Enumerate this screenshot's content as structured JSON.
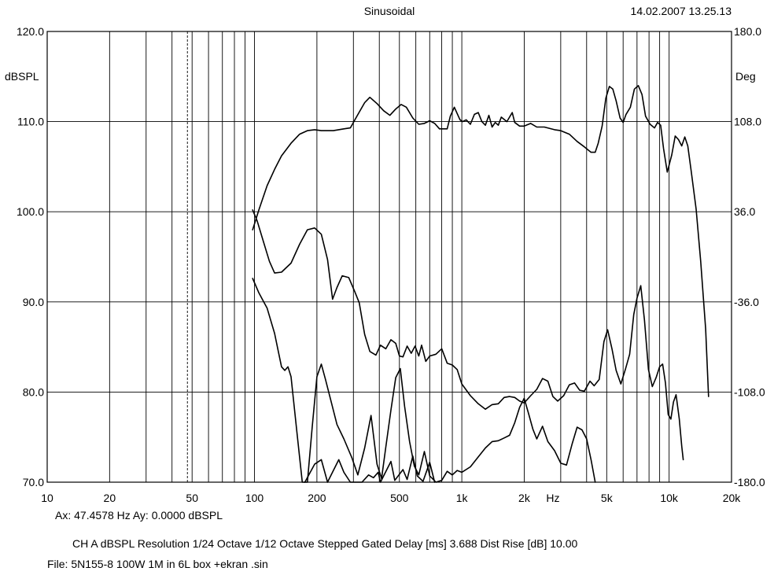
{
  "header": {
    "title": "Sinusoidal",
    "timestamp": "14.02.2007 13.25.13"
  },
  "chart_data": {
    "type": "line",
    "title": "Sinusoidal",
    "xscale": "log",
    "xlim": [
      10,
      20000
    ],
    "xunit": "Hz",
    "ylim": [
      70,
      120
    ],
    "ylabel": "dBSPL",
    "y2lim": [
      -180,
      180
    ],
    "y2label": "Deg",
    "grid": true,
    "marker_freq": 47.4578,
    "x_ticks": [
      {
        "v": 10,
        "label": "10"
      },
      {
        "v": 20,
        "label": "20"
      },
      {
        "v": 50,
        "label": "50"
      },
      {
        "v": 100,
        "label": "100"
      },
      {
        "v": 200,
        "label": "200"
      },
      {
        "v": 500,
        "label": "500"
      },
      {
        "v": 1000,
        "label": "1k"
      },
      {
        "v": 2000,
        "label": "2k"
      },
      {
        "v": 5000,
        "label": "5k"
      },
      {
        "v": 10000,
        "label": "10k"
      },
      {
        "v": 20000,
        "label": "20k"
      }
    ],
    "hz_label": {
      "v": 2750,
      "label": "Hz"
    },
    "y_ticks": [
      {
        "v": 120,
        "label": "120.0"
      },
      {
        "v": 110,
        "label": "110.0"
      },
      {
        "v": 100,
        "label": "100.0"
      },
      {
        "v": 90,
        "label": "90.0"
      },
      {
        "v": 80,
        "label": "80.0"
      },
      {
        "v": 70,
        "label": "70.0"
      }
    ],
    "y2_ticks": [
      {
        "v": 180,
        "label": "180.0"
      },
      {
        "v": 108,
        "label": "108.0"
      },
      {
        "v": 36,
        "label": "36.0"
      },
      {
        "v": -36,
        "label": "-36.0"
      },
      {
        "v": -108,
        "label": "-108.0"
      },
      {
        "v": -180,
        "label": "-180.0"
      }
    ],
    "series": [
      {
        "values": [
          [
            98,
            98.0
          ],
          [
            105,
            100.2
          ],
          [
            115,
            102.9
          ],
          [
            125,
            104.7
          ],
          [
            135,
            106.2
          ],
          [
            150,
            107.6
          ],
          [
            165,
            108.6
          ],
          [
            180,
            109.0
          ],
          [
            195,
            109.1
          ],
          [
            210,
            109.0
          ],
          [
            240,
            109.0
          ],
          [
            270,
            109.2
          ],
          [
            290,
            109.3
          ],
          [
            310,
            110.5
          ],
          [
            340,
            112.1
          ],
          [
            360,
            112.7
          ],
          [
            390,
            112.0
          ],
          [
            420,
            111.2
          ],
          [
            450,
            110.7
          ],
          [
            480,
            111.4
          ],
          [
            510,
            111.9
          ],
          [
            540,
            111.6
          ],
          [
            580,
            110.4
          ],
          [
            620,
            109.7
          ],
          [
            660,
            109.8
          ],
          [
            700,
            110.1
          ],
          [
            740,
            109.8
          ],
          [
            780,
            109.2
          ],
          [
            850,
            109.2
          ],
          [
            880,
            110.6
          ],
          [
            920,
            111.6
          ],
          [
            950,
            110.9
          ],
          [
            980,
            110.2
          ],
          [
            1010,
            110.0
          ],
          [
            1050,
            110.2
          ],
          [
            1100,
            109.7
          ],
          [
            1150,
            110.8
          ],
          [
            1200,
            111.0
          ],
          [
            1250,
            110.0
          ],
          [
            1300,
            109.6
          ],
          [
            1350,
            110.7
          ],
          [
            1400,
            109.4
          ],
          [
            1450,
            109.9
          ],
          [
            1500,
            109.6
          ],
          [
            1550,
            110.5
          ],
          [
            1650,
            110.0
          ],
          [
            1750,
            111.0
          ],
          [
            1800,
            109.9
          ],
          [
            1900,
            109.5
          ],
          [
            2000,
            109.5
          ],
          [
            2150,
            109.8
          ],
          [
            2300,
            109.4
          ],
          [
            2500,
            109.4
          ],
          [
            2800,
            109.1
          ],
          [
            3000,
            109.0
          ],
          [
            3300,
            108.6
          ],
          [
            3600,
            107.8
          ],
          [
            3900,
            107.2
          ],
          [
            4200,
            106.6
          ],
          [
            4400,
            106.6
          ],
          [
            4550,
            107.6
          ],
          [
            4750,
            109.5
          ],
          [
            4950,
            112.6
          ],
          [
            5150,
            113.9
          ],
          [
            5350,
            113.6
          ],
          [
            5550,
            112.3
          ],
          [
            5800,
            110.4
          ],
          [
            6000,
            109.9
          ],
          [
            6200,
            110.8
          ],
          [
            6500,
            111.6
          ],
          [
            6800,
            113.6
          ],
          [
            7100,
            114.0
          ],
          [
            7400,
            113.0
          ],
          [
            7700,
            110.6
          ],
          [
            8100,
            109.7
          ],
          [
            8500,
            109.3
          ],
          [
            8800,
            109.9
          ],
          [
            9100,
            109.6
          ],
          [
            9400,
            107.0
          ],
          [
            9800,
            104.4
          ],
          [
            10300,
            106.3
          ],
          [
            10700,
            108.4
          ],
          [
            11100,
            108.0
          ],
          [
            11500,
            107.3
          ],
          [
            11900,
            108.3
          ],
          [
            12300,
            107.3
          ],
          [
            12800,
            104.4
          ],
          [
            13500,
            100.3
          ],
          [
            14200,
            94.5
          ],
          [
            15000,
            87.0
          ],
          [
            15500,
            79.5
          ]
        ]
      },
      {
        "values": [
          [
            98,
            100.2
          ],
          [
            103,
            99.0
          ],
          [
            110,
            96.8
          ],
          [
            118,
            94.5
          ],
          [
            125,
            93.2
          ],
          [
            135,
            93.3
          ],
          [
            150,
            94.3
          ],
          [
            165,
            96.4
          ],
          [
            180,
            98.0
          ],
          [
            195,
            98.2
          ],
          [
            210,
            97.5
          ],
          [
            225,
            94.7
          ],
          [
            238,
            90.3
          ],
          [
            250,
            91.6
          ],
          [
            265,
            92.9
          ],
          [
            285,
            92.7
          ],
          [
            305,
            91.1
          ],
          [
            320,
            89.9
          ],
          [
            340,
            86.4
          ],
          [
            360,
            84.5
          ],
          [
            385,
            84.1
          ],
          [
            405,
            85.2
          ],
          [
            430,
            84.8
          ],
          [
            455,
            85.8
          ],
          [
            480,
            85.4
          ],
          [
            500,
            84.0
          ],
          [
            520,
            83.9
          ],
          [
            545,
            85.1
          ],
          [
            570,
            84.3
          ],
          [
            595,
            85.1
          ],
          [
            620,
            84.0
          ],
          [
            640,
            85.2
          ],
          [
            670,
            83.4
          ],
          [
            700,
            84.0
          ],
          [
            750,
            84.2
          ],
          [
            800,
            84.8
          ],
          [
            850,
            83.2
          ],
          [
            900,
            83.0
          ],
          [
            950,
            82.5
          ],
          [
            1000,
            80.9
          ],
          [
            1100,
            79.6
          ],
          [
            1200,
            78.7
          ],
          [
            1300,
            78.1
          ],
          [
            1400,
            78.6
          ],
          [
            1500,
            78.7
          ],
          [
            1600,
            79.4
          ],
          [
            1700,
            79.5
          ],
          [
            1800,
            79.4
          ],
          [
            1900,
            79.0
          ],
          [
            2000,
            78.8
          ],
          [
            2150,
            79.6
          ],
          [
            2300,
            80.3
          ],
          [
            2450,
            81.5
          ],
          [
            2600,
            81.2
          ],
          [
            2750,
            79.5
          ],
          [
            2900,
            79.0
          ],
          [
            3100,
            79.6
          ],
          [
            3300,
            80.8
          ],
          [
            3500,
            81.0
          ],
          [
            3700,
            80.2
          ],
          [
            3900,
            80.1
          ],
          [
            4150,
            81.2
          ],
          [
            4350,
            80.7
          ],
          [
            4600,
            81.4
          ],
          [
            4850,
            85.6
          ],
          [
            5050,
            86.9
          ],
          [
            5300,
            84.8
          ],
          [
            5550,
            82.4
          ],
          [
            5850,
            80.9
          ],
          [
            6150,
            82.5
          ],
          [
            6450,
            84.2
          ],
          [
            6750,
            88.6
          ],
          [
            7000,
            90.4
          ],
          [
            7300,
            91.8
          ],
          [
            7600,
            88.0
          ],
          [
            7950,
            82.5
          ],
          [
            8300,
            80.6
          ],
          [
            8650,
            81.6
          ],
          [
            9000,
            82.8
          ],
          [
            9300,
            83.1
          ],
          [
            9600,
            81.0
          ],
          [
            9900,
            77.5
          ],
          [
            10200,
            77.0
          ],
          [
            10500,
            78.9
          ],
          [
            10800,
            79.7
          ],
          [
            11200,
            77.0
          ],
          [
            11500,
            74.0
          ],
          [
            11700,
            72.5
          ]
        ]
      },
      {
        "values": [
          [
            98,
            92.6
          ],
          [
            105,
            91.0
          ],
          [
            115,
            89.3
          ],
          [
            125,
            86.5
          ],
          [
            130,
            84.6
          ],
          [
            135,
            82.8
          ],
          [
            140,
            82.4
          ],
          [
            145,
            82.8
          ],
          [
            150,
            81.7
          ],
          [
            160,
            75.6
          ],
          [
            170,
            70.0
          ],
          [
            180,
            70.0
          ],
          [
            190,
            76.2
          ],
          [
            200,
            81.7
          ],
          [
            210,
            83.1
          ],
          [
            220,
            81.4
          ],
          [
            235,
            78.8
          ],
          [
            250,
            76.4
          ],
          [
            270,
            74.8
          ],
          [
            295,
            72.7
          ],
          [
            315,
            70.8
          ],
          [
            340,
            73.8
          ],
          [
            365,
            77.4
          ],
          [
            390,
            72.0
          ],
          [
            410,
            70.4
          ],
          [
            430,
            73.9
          ],
          [
            455,
            78.0
          ],
          [
            480,
            81.6
          ],
          [
            505,
            82.6
          ],
          [
            530,
            78.4
          ],
          [
            560,
            74.5
          ],
          [
            590,
            71.8
          ],
          [
            620,
            70.8
          ],
          [
            660,
            73.4
          ],
          [
            700,
            70.7
          ],
          [
            750,
            70.0
          ],
          [
            800,
            70.2
          ],
          [
            850,
            71.2
          ],
          [
            900,
            70.8
          ],
          [
            950,
            71.3
          ],
          [
            1000,
            71.1
          ],
          [
            1100,
            71.7
          ],
          [
            1200,
            72.8
          ],
          [
            1300,
            73.8
          ],
          [
            1400,
            74.5
          ],
          [
            1500,
            74.6
          ],
          [
            1600,
            74.9
          ],
          [
            1700,
            75.2
          ],
          [
            1800,
            76.6
          ],
          [
            1900,
            78.3
          ],
          [
            2000,
            79.3
          ],
          [
            2100,
            77.6
          ],
          [
            2200,
            75.9
          ],
          [
            2300,
            74.8
          ],
          [
            2450,
            76.2
          ],
          [
            2600,
            74.5
          ],
          [
            2800,
            73.5
          ],
          [
            3000,
            72.1
          ],
          [
            3200,
            71.9
          ],
          [
            3400,
            74.2
          ],
          [
            3600,
            76.1
          ],
          [
            3800,
            75.8
          ],
          [
            4000,
            74.8
          ],
          [
            4200,
            72.5
          ],
          [
            4400,
            70.0
          ]
        ]
      },
      {
        "values": [
          [
            175,
            70.0
          ],
          [
            195,
            72.0
          ],
          [
            210,
            72.5
          ],
          [
            225,
            70.0
          ],
          [
            255,
            72.5
          ],
          [
            270,
            71.1
          ],
          [
            290,
            70.0
          ],
          [
            330,
            70.0
          ],
          [
            355,
            70.8
          ],
          [
            375,
            70.5
          ],
          [
            395,
            71.1
          ],
          [
            405,
            70.0
          ],
          [
            455,
            72.3
          ],
          [
            475,
            70.2
          ],
          [
            520,
            71.4
          ],
          [
            545,
            70.3
          ],
          [
            580,
            72.9
          ],
          [
            610,
            70.7
          ],
          [
            650,
            70.1
          ],
          [
            700,
            72.2
          ],
          [
            740,
            70.0
          ]
        ]
      }
    ]
  },
  "cursor": {
    "text": "Ax: 47.4578 Hz   Ay: 0.0000 dBSPL"
  },
  "footer": {
    "settings": "CH A   dBSPL   Resolution 1/24 Octave   1/12 Octave   Stepped   Gated   Delay [ms] 3.688   Dist Rise [dB] 10.00",
    "file": "File: 5N155-8 100W 1M in 6L box +ekran .sin"
  }
}
